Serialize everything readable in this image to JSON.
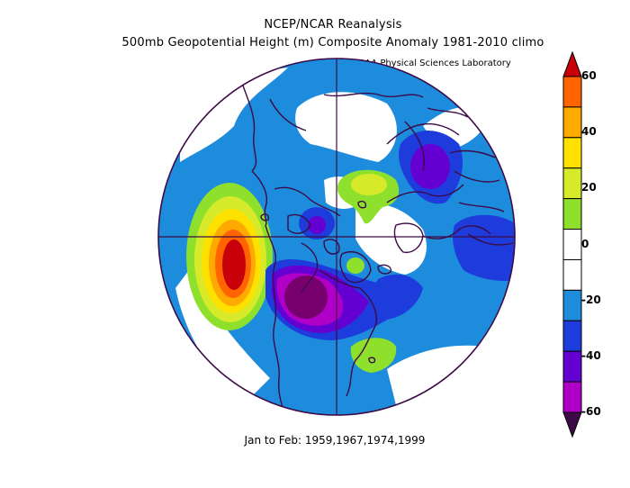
{
  "title_line1": "NCEP/NCAR Reanalysis",
  "title_line2": "500mb Geopotential Height (m) Composite Anomaly 1981-2010 climo",
  "credit": "NOAA Physical Sciences Laboratory",
  "period": "Jan to Feb: 1959,1967,1974,1999",
  "colorbar": {
    "levels": [
      60,
      50,
      40,
      30,
      20,
      10,
      0,
      -10,
      -20,
      -30,
      -40,
      -50,
      -60
    ],
    "labels": [
      "60",
      "40",
      "20",
      "0",
      "-20",
      "-40",
      "-60"
    ],
    "colors": [
      "#c8000a",
      "#ff6400",
      "#ffaa00",
      "#ffe100",
      "#d7ea2a",
      "#8ee02c",
      "#ffffff",
      "#ffffff",
      "#1e8cdc",
      "#1e3cdc",
      "#6400d2",
      "#b000c8",
      "#78006e"
    ],
    "top_arrow_color": "#c8000a",
    "bottom_arrow_color": "#3c0a46"
  },
  "map": {
    "projection": "north-polar-stereographic",
    "background_anomaly_color": "#1e8cdc",
    "coastline_color": "#3c0a46",
    "features": [
      {
        "name": "north-pacific-positive-anomaly",
        "peak_m": 60
      },
      {
        "name": "north-america-negative-anomaly",
        "peak_m": -60
      },
      {
        "name": "eurasia-negative-anomaly",
        "peak_m": -40
      },
      {
        "name": "arctic-siberia-positive-anomaly",
        "peak_m": 30
      },
      {
        "name": "north-atlantic-positive-anomaly",
        "peak_m": 20
      }
    ]
  }
}
